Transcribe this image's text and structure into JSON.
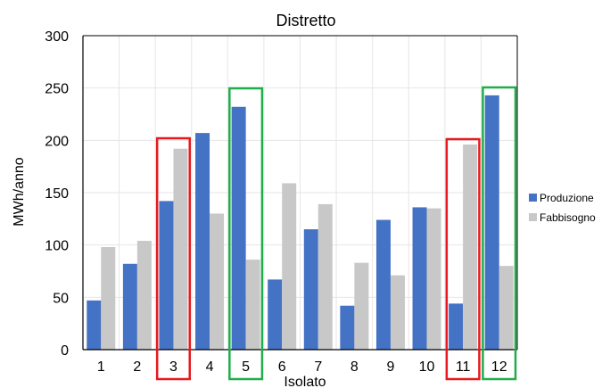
{
  "chart_data": {
    "type": "bar",
    "title": "Distretto",
    "xlabel": "Isolato",
    "ylabel": "MWh/anno",
    "categories": [
      "1",
      "2",
      "3",
      "4",
      "5",
      "6",
      "7",
      "8",
      "9",
      "10",
      "11",
      "12"
    ],
    "series": [
      {
        "name": "Produzione",
        "color": "#4472c4",
        "values": [
          47,
          82,
          142,
          207,
          232,
          67,
          115,
          42,
          124,
          136,
          44,
          243
        ]
      },
      {
        "name": "Fabbisogno",
        "color": "#c8c8c8",
        "values": [
          98,
          104,
          192,
          130,
          86,
          159,
          139,
          83,
          71,
          135,
          196,
          80
        ]
      }
    ],
    "ylim": [
      0,
      300
    ],
    "yticks": [
      0,
      50,
      100,
      150,
      200,
      250,
      300
    ],
    "grid": true,
    "legend": "right",
    "highlights": [
      {
        "category": "3",
        "color": "#e8191e"
      },
      {
        "category": "5",
        "color": "#1fae4b"
      },
      {
        "category": "11",
        "color": "#e8191e"
      },
      {
        "category": "12",
        "color": "#1fae4b"
      }
    ]
  }
}
